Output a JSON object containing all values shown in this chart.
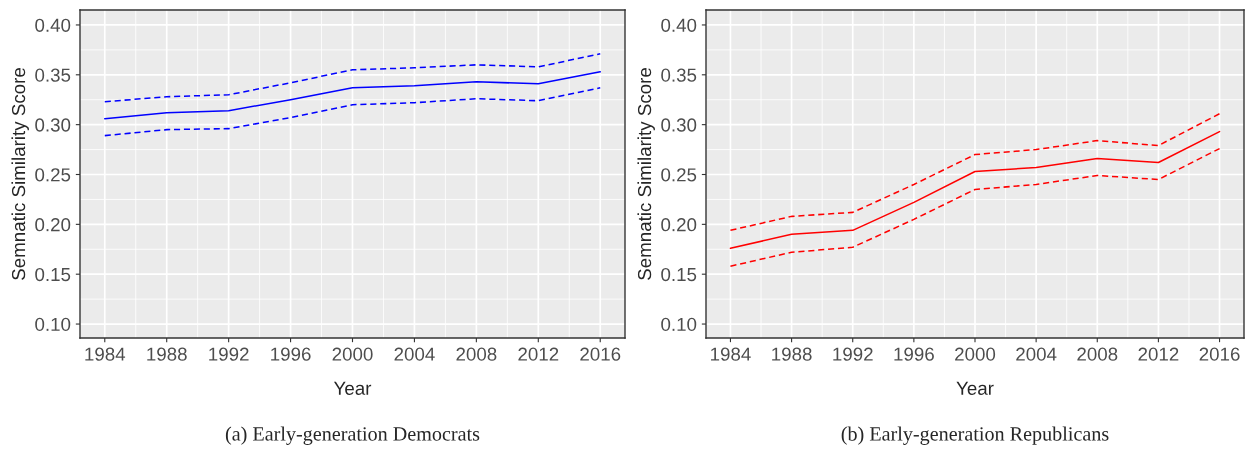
{
  "chart_data": [
    {
      "type": "line",
      "xlabel": "Year",
      "ylabel": "Semnatic Similarity Score",
      "annotations": [
        "(a) Early-generation Democrats"
      ],
      "x": [
        1984,
        1988,
        1992,
        1996,
        2000,
        2004,
        2008,
        2012,
        2016
      ],
      "series": [
        {
          "color": "#0000ff",
          "line_style": "solid",
          "values": [
            0.306,
            0.312,
            0.314,
            0.325,
            0.337,
            0.339,
            0.343,
            0.341,
            0.353
          ]
        },
        {
          "color": "#0000ff",
          "line_style": "dashed",
          "values": [
            0.323,
            0.328,
            0.33,
            0.342,
            0.355,
            0.357,
            0.36,
            0.358,
            0.371
          ]
        },
        {
          "color": "#0000ff",
          "line_style": "dashed",
          "values": [
            0.289,
            0.295,
            0.296,
            0.307,
            0.32,
            0.322,
            0.326,
            0.324,
            0.337
          ]
        }
      ],
      "xlim": [
        1982.4,
        2017.6
      ],
      "xticks": [
        1984,
        1988,
        1992,
        1996,
        2000,
        2004,
        2008,
        2012,
        2016
      ],
      "ylim": [
        0.086,
        0.415
      ],
      "yticks": [
        {
          "value": 0.1,
          "label": "0.10"
        },
        {
          "value": 0.15,
          "label": "0.15"
        },
        {
          "value": 0.2,
          "label": "0.20"
        },
        {
          "value": 0.25,
          "label": "0.25"
        },
        {
          "value": 0.3,
          "label": "0.30"
        },
        {
          "value": 0.35,
          "label": "0.35"
        },
        {
          "value": 0.4,
          "label": "0.40"
        }
      ],
      "grid": true,
      "legend": false,
      "marker": "none"
    },
    {
      "type": "line",
      "xlabel": "Year",
      "ylabel": "Semnatic Similarity Score",
      "annotations": [
        "(b) Early-generation Republicans"
      ],
      "x": [
        1984,
        1988,
        1992,
        1996,
        2000,
        2004,
        2008,
        2012,
        2016
      ],
      "series": [
        {
          "color": "#ff0000",
          "line_style": "solid",
          "values": [
            0.176,
            0.19,
            0.194,
            0.222,
            0.253,
            0.257,
            0.266,
            0.262,
            0.293
          ]
        },
        {
          "color": "#ff0000",
          "line_style": "dashed",
          "values": [
            0.194,
            0.208,
            0.212,
            0.24,
            0.27,
            0.275,
            0.284,
            0.279,
            0.311
          ]
        },
        {
          "color": "#ff0000",
          "line_style": "dashed",
          "values": [
            0.158,
            0.172,
            0.177,
            0.205,
            0.235,
            0.24,
            0.249,
            0.245,
            0.276
          ]
        }
      ],
      "xlim": [
        1982.4,
        2017.6
      ],
      "xticks": [
        1984,
        1988,
        1992,
        1996,
        2000,
        2004,
        2008,
        2012,
        2016
      ],
      "ylim": [
        0.086,
        0.415
      ],
      "yticks": [
        {
          "value": 0.1,
          "label": "0.10"
        },
        {
          "value": 0.15,
          "label": "0.15"
        },
        {
          "value": 0.2,
          "label": "0.20"
        },
        {
          "value": 0.25,
          "label": "0.25"
        },
        {
          "value": 0.3,
          "label": "0.30"
        },
        {
          "value": 0.35,
          "label": "0.35"
        },
        {
          "value": 0.4,
          "label": "0.40"
        }
      ],
      "grid": true,
      "legend": false,
      "marker": "none"
    }
  ]
}
